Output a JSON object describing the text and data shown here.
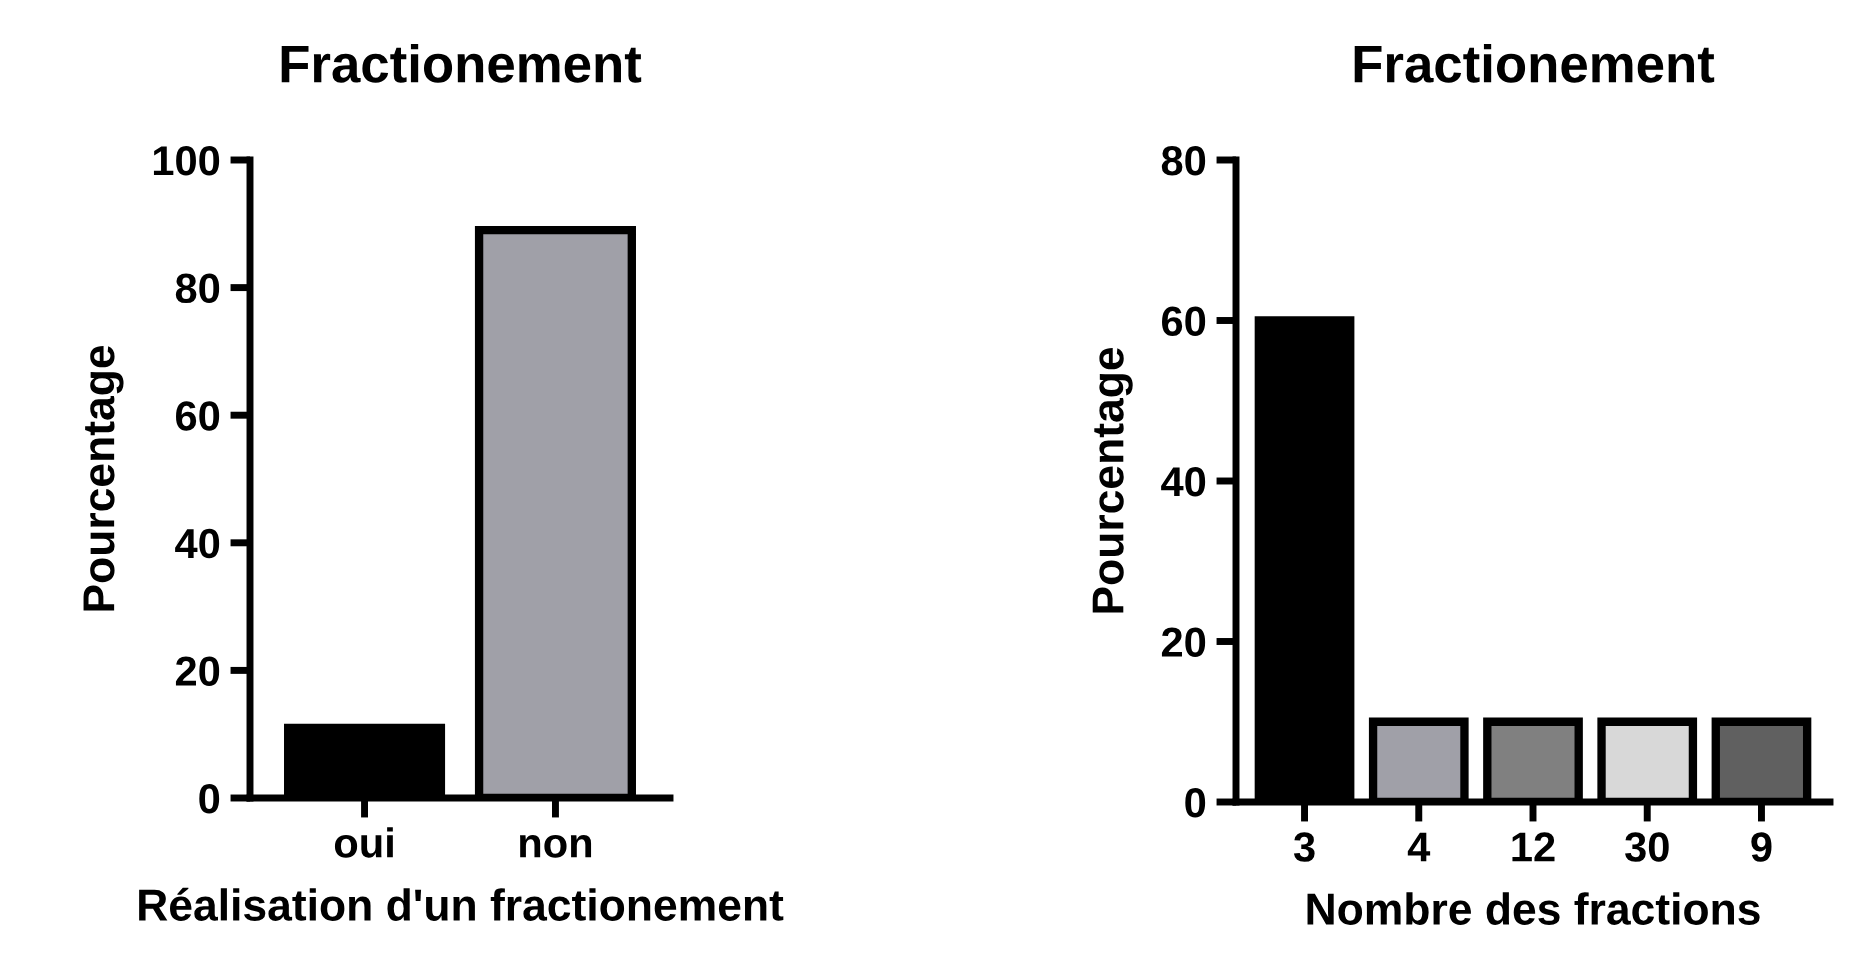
{
  "chart_data": [
    {
      "type": "bar",
      "title": "Fractionement",
      "xlabel": "Réalisation d'un fractionement",
      "ylabel": "Pourcentage",
      "categories": [
        "oui",
        "non"
      ],
      "values": [
        11,
        89
      ],
      "colors": [
        "#000000",
        "#a0a0a8"
      ],
      "ylim": [
        0,
        100
      ],
      "yticks": [
        0,
        20,
        40,
        60,
        80,
        100
      ],
      "grid": false,
      "legend": false
    },
    {
      "type": "bar",
      "title": "Fractionement",
      "xlabel": "Nombre des fractions",
      "ylabel": "Pourcentage",
      "categories": [
        "3",
        "4",
        "12",
        "30",
        "9"
      ],
      "values": [
        60,
        10,
        10,
        10,
        10
      ],
      "colors": [
        "#000000",
        "#a0a0a8",
        "#808080",
        "#d8d8d8",
        "#606060"
      ],
      "ylim": [
        0,
        80
      ],
      "yticks": [
        0,
        20,
        40,
        60,
        80
      ],
      "grid": false,
      "legend": false
    }
  ]
}
